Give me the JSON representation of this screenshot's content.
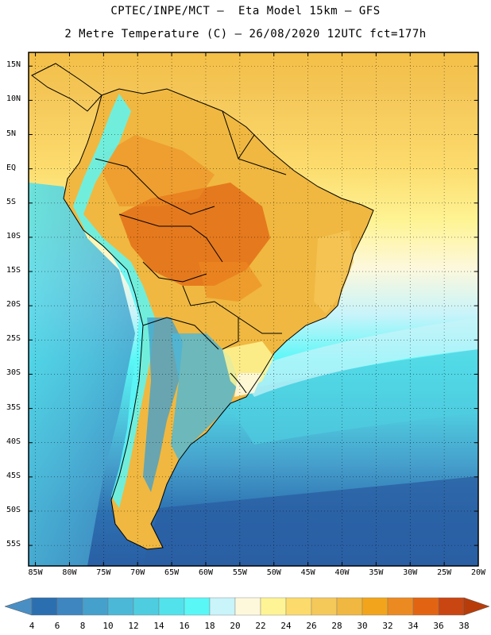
{
  "header": {
    "line1": "CPTEC/INPE/MCT –  Eta Model 15km – GFS",
    "line2": "2 Metre Temperature (C) – 26/08/2020 12UTC fct=177h"
  },
  "map": {
    "lat_labels": [
      "15N",
      "10N",
      "5N",
      "EQ",
      "5S",
      "10S",
      "15S",
      "20S",
      "25S",
      "30S",
      "35S",
      "40S",
      "45S",
      "50S",
      "55S"
    ],
    "lon_labels": [
      "85W",
      "80W",
      "75W",
      "70W",
      "65W",
      "60W",
      "55W",
      "50W",
      "45W",
      "40W",
      "35W",
      "30W",
      "25W",
      "20W"
    ],
    "lat_range": [
      17,
      -58
    ],
    "lon_range": [
      -86,
      -20
    ]
  },
  "colorbar": {
    "labels": [
      "4",
      "6",
      "8",
      "10",
      "12",
      "14",
      "16",
      "18",
      "20",
      "22",
      "24",
      "26",
      "28",
      "30",
      "32",
      "34",
      "36",
      "38"
    ],
    "colors": [
      "#4a8fc4",
      "#2c6fb0",
      "#3e86c0",
      "#46a0cc",
      "#4cb8d8",
      "#4fcde0",
      "#52e2ec",
      "#5af7f7",
      "#c8f4fa",
      "#fdf8dc",
      "#fef495",
      "#fcdb6c",
      "#f5c85a",
      "#f0b840",
      "#f2a51c",
      "#ec8a22",
      "#e26412",
      "#c94612",
      "#b83c0a"
    ]
  }
}
